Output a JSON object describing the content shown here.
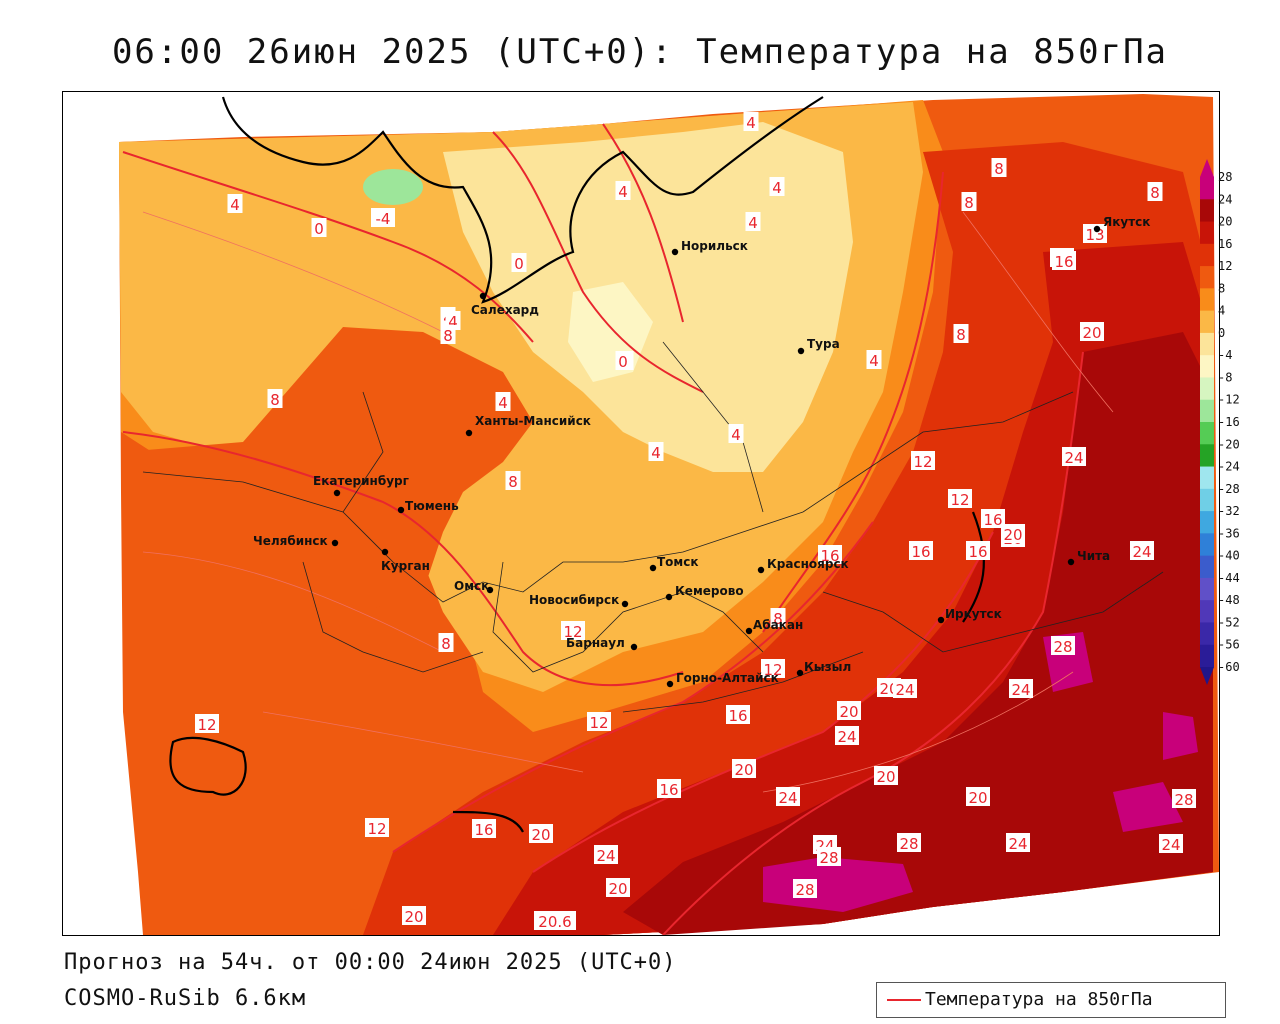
{
  "title": "06:00 26июн 2025 (UTC+0): Температура на 850гПа",
  "footer": {
    "forecast": "Прогноз на 54ч. от 00:00 24июн 2025 (UTC+0)",
    "model": "COSMO-RuSib 6.6км"
  },
  "legend": {
    "label": "Температура на 850гПа",
    "line_color": "#e8262e"
  },
  "colorbar": {
    "ticks": [
      "28",
      "24",
      "20",
      "16",
      "12",
      "8",
      "4",
      "0",
      "-4",
      "-8",
      "-12",
      "-16",
      "-20",
      "-24",
      "-28",
      "-32",
      "-36",
      "-40",
      "-44",
      "-48",
      "-52",
      "-56",
      "-60"
    ],
    "colors": [
      "#c8007a",
      "#a80808",
      "#c81408",
      "#e03208",
      "#ef5a10",
      "#f98c1a",
      "#fbb846",
      "#fce49a",
      "#fdf6c4",
      "#d6f5c0",
      "#9de69a",
      "#55cc55",
      "#25a325",
      "#9fe6ee",
      "#6fcfe6",
      "#3fa8e0",
      "#2f80d8",
      "#3b5ccc",
      "#6050c8",
      "#5038b8",
      "#3a28a8",
      "#2a1c98",
      "#20168a"
    ]
  },
  "contour_labels": [
    "4",
    "4",
    "4",
    "4",
    "4",
    "4",
    "4",
    "4",
    "4",
    "4",
    "4",
    "0",
    "0",
    "-4",
    "0",
    "0",
    "8",
    "8",
    "8",
    "8",
    "8",
    "8",
    "8",
    "8",
    "8",
    "12",
    "12",
    "12",
    "12",
    "12",
    "12",
    "12",
    "16",
    "16",
    "16",
    "16",
    "16",
    "16",
    "16",
    "20",
    "20",
    "20",
    "20",
    "20",
    "20",
    "20",
    "20",
    "20",
    "20",
    "20.6",
    "24",
    "24",
    "24",
    "24",
    "24",
    "24",
    "24",
    "24",
    "24",
    "24",
    "28",
    "28",
    "28",
    "28",
    "28",
    "13",
    "16",
    "16",
    "20"
  ],
  "cities": [
    "Якутск",
    "Норильск",
    "Салехард",
    "Тура",
    "Ханты-Мансийск",
    "Екатеринбург",
    "Тюмень",
    "Челябинск",
    "Курган",
    "Омск",
    "Новосибирск",
    "Томск",
    "Красноярск",
    "Кемерово",
    "Барнаул",
    "Абакан",
    "Горно-Алтайск",
    "Кызыл",
    "Иркутск",
    "Чита"
  ]
}
